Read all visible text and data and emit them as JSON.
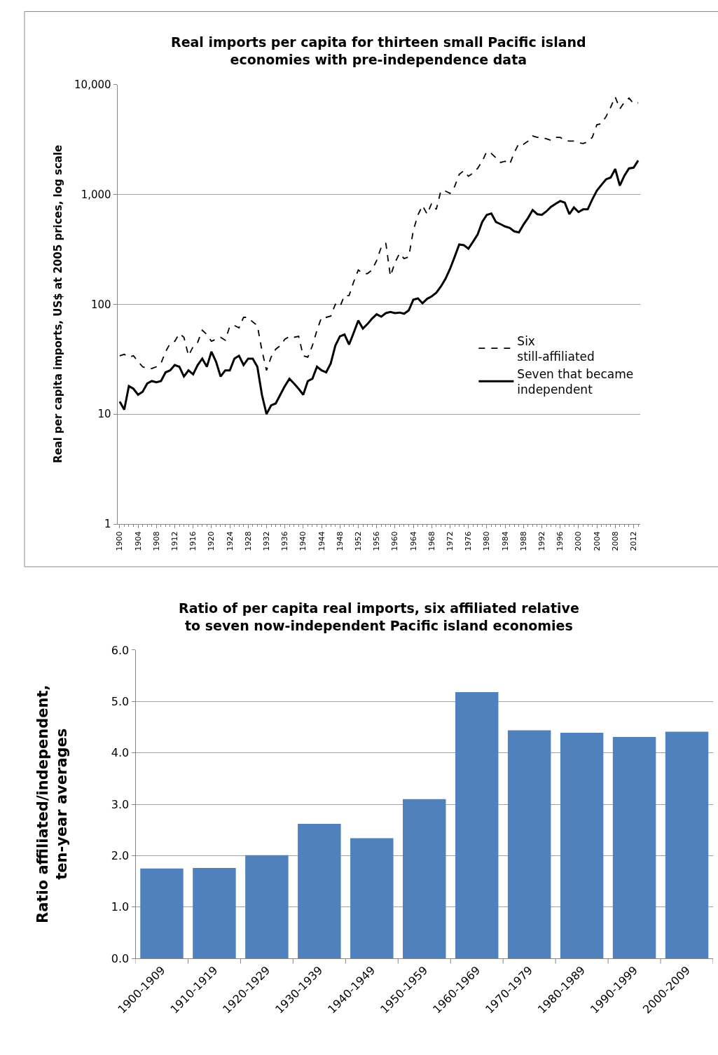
{
  "chart_data": [
    {
      "type": "line",
      "title": "Real imports per capita for thirteen small Pacific island economies with pre-independence data",
      "ylabel": "Real per capita imports, US$ at 2005 prices, log scale",
      "x": [
        1900,
        1901,
        1902,
        1903,
        1904,
        1905,
        1906,
        1907,
        1908,
        1909,
        1910,
        1911,
        1912,
        1913,
        1914,
        1915,
        1916,
        1917,
        1918,
        1919,
        1920,
        1921,
        1922,
        1923,
        1924,
        1925,
        1926,
        1927,
        1928,
        1929,
        1930,
        1931,
        1932,
        1933,
        1934,
        1935,
        1936,
        1937,
        1938,
        1939,
        1940,
        1941,
        1942,
        1943,
        1944,
        1945,
        1946,
        1947,
        1948,
        1949,
        1950,
        1951,
        1952,
        1953,
        1954,
        1955,
        1956,
        1957,
        1958,
        1959,
        1960,
        1961,
        1962,
        1963,
        1964,
        1965,
        1966,
        1967,
        1968,
        1969,
        1970,
        1971,
        1972,
        1973,
        1974,
        1975,
        1976,
        1977,
        1978,
        1979,
        1980,
        1981,
        1982,
        1983,
        1984,
        1985,
        1986,
        1987,
        1988,
        1989,
        1990,
        1991,
        1992,
        1993,
        1994,
        1995,
        1996,
        1997,
        1998,
        1999,
        2000,
        2001,
        2002,
        2003,
        2004,
        2005,
        2006,
        2007,
        2008,
        2009,
        2010,
        2011,
        2012,
        2013
      ],
      "series": [
        {
          "name": "Six still-affiliated",
          "color": "#000000",
          "line_style": "dashed",
          "values": [
            34,
            35,
            33,
            34,
            30,
            27,
            26,
            26,
            27,
            29,
            37,
            44,
            46,
            54,
            50,
            34,
            41,
            45,
            58,
            53,
            46,
            48,
            50,
            47,
            63,
            64,
            61,
            76,
            76,
            69,
            64,
            38,
            25,
            33,
            39,
            42,
            48,
            51,
            50,
            51,
            34,
            33,
            42,
            58,
            76,
            76,
            78,
            100,
            95,
            120,
            120,
            160,
            205,
            190,
            190,
            205,
            250,
            330,
            360,
            180,
            240,
            290,
            260,
            270,
            470,
            650,
            790,
            660,
            830,
            730,
            1080,
            1070,
            1020,
            1180,
            1520,
            1640,
            1460,
            1560,
            1720,
            2000,
            2450,
            2350,
            2150,
            1950,
            2000,
            1880,
            2400,
            2900,
            2850,
            3050,
            3400,
            3300,
            3300,
            3200,
            3100,
            3300,
            3300,
            3100,
            3050,
            3050,
            2950,
            2900,
            3000,
            3300,
            4300,
            4400,
            5100,
            6200,
            7700,
            6000,
            6900,
            7500,
            6700,
            6800
          ]
        },
        {
          "name": "Seven that became independent",
          "color": "#000000",
          "line_style": "solid",
          "values": [
            13,
            11,
            18,
            17,
            15,
            16,
            19,
            20,
            19.5,
            20,
            24,
            25,
            28,
            27,
            22,
            25,
            23,
            28,
            32,
            27,
            37,
            30,
            22,
            25,
            25,
            32,
            34,
            28,
            32,
            32,
            27,
            15,
            10,
            12,
            12.5,
            15,
            18,
            21,
            19,
            17,
            15,
            20,
            21,
            27,
            25,
            24,
            29,
            42,
            51,
            53,
            43,
            55,
            71,
            60,
            66,
            74,
            81,
            77,
            83,
            85,
            83,
            84,
            82,
            88,
            110,
            113,
            102,
            112,
            118,
            127,
            145,
            170,
            210,
            270,
            350,
            345,
            320,
            370,
            430,
            560,
            650,
            670,
            560,
            535,
            510,
            495,
            460,
            450,
            530,
            610,
            720,
            660,
            650,
            700,
            770,
            820,
            870,
            840,
            660,
            760,
            690,
            730,
            730,
            900,
            1080,
            1220,
            1370,
            1420,
            1700,
            1200,
            1480,
            1720,
            1750,
            2030
          ]
        }
      ],
      "log": true,
      "ylim": [
        1,
        10000
      ],
      "yticks": [
        {
          "value": 1,
          "label": "1"
        },
        {
          "value": 10,
          "label": "10"
        },
        {
          "value": 100,
          "label": "100"
        },
        {
          "value": 1000,
          "label": "1,000"
        },
        {
          "value": 10000,
          "label": "10,000"
        }
      ],
      "xlim": [
        1899.5,
        2013.5
      ],
      "xticks": [
        1900,
        1904,
        1908,
        1912,
        1916,
        1920,
        1924,
        1928,
        1932,
        1936,
        1940,
        1944,
        1948,
        1952,
        1956,
        1960,
        1964,
        1968,
        1972,
        1976,
        1980,
        1984,
        1988,
        1992,
        1996,
        2000,
        2004,
        2008,
        2012
      ],
      "grid": "y",
      "legend": "right",
      "marker": "none"
    },
    {
      "type": "bar",
      "title": "Ratio of per capita real imports, six affiliated relative to seven now-independent Pacific island economies",
      "ylabel": "Ratio affiliated/independent, ten-year averages",
      "categories": [
        "1900-1909",
        "1910-1919",
        "1920-1929",
        "1930-1939",
        "1940-1949",
        "1950-1959",
        "1960-1969",
        "1970-1979",
        "1980-1989",
        "1990-1999",
        "2000-2009"
      ],
      "values": [
        1.75,
        1.76,
        2.01,
        2.62,
        2.34,
        3.1,
        5.18,
        4.44,
        4.39,
        4.31,
        4.41
      ],
      "color": "#4f81bd",
      "ylim": [
        0,
        6
      ],
      "yticks": [
        {
          "value": 0,
          "label": "0.0"
        },
        {
          "value": 1,
          "label": "1.0"
        },
        {
          "value": 2,
          "label": "2.0"
        },
        {
          "value": 3,
          "label": "3.0"
        },
        {
          "value": 4,
          "label": "4.0"
        },
        {
          "value": 5,
          "label": "5.0"
        },
        {
          "value": 6,
          "label": "6.0"
        }
      ],
      "grid": "y",
      "legend": false
    }
  ]
}
